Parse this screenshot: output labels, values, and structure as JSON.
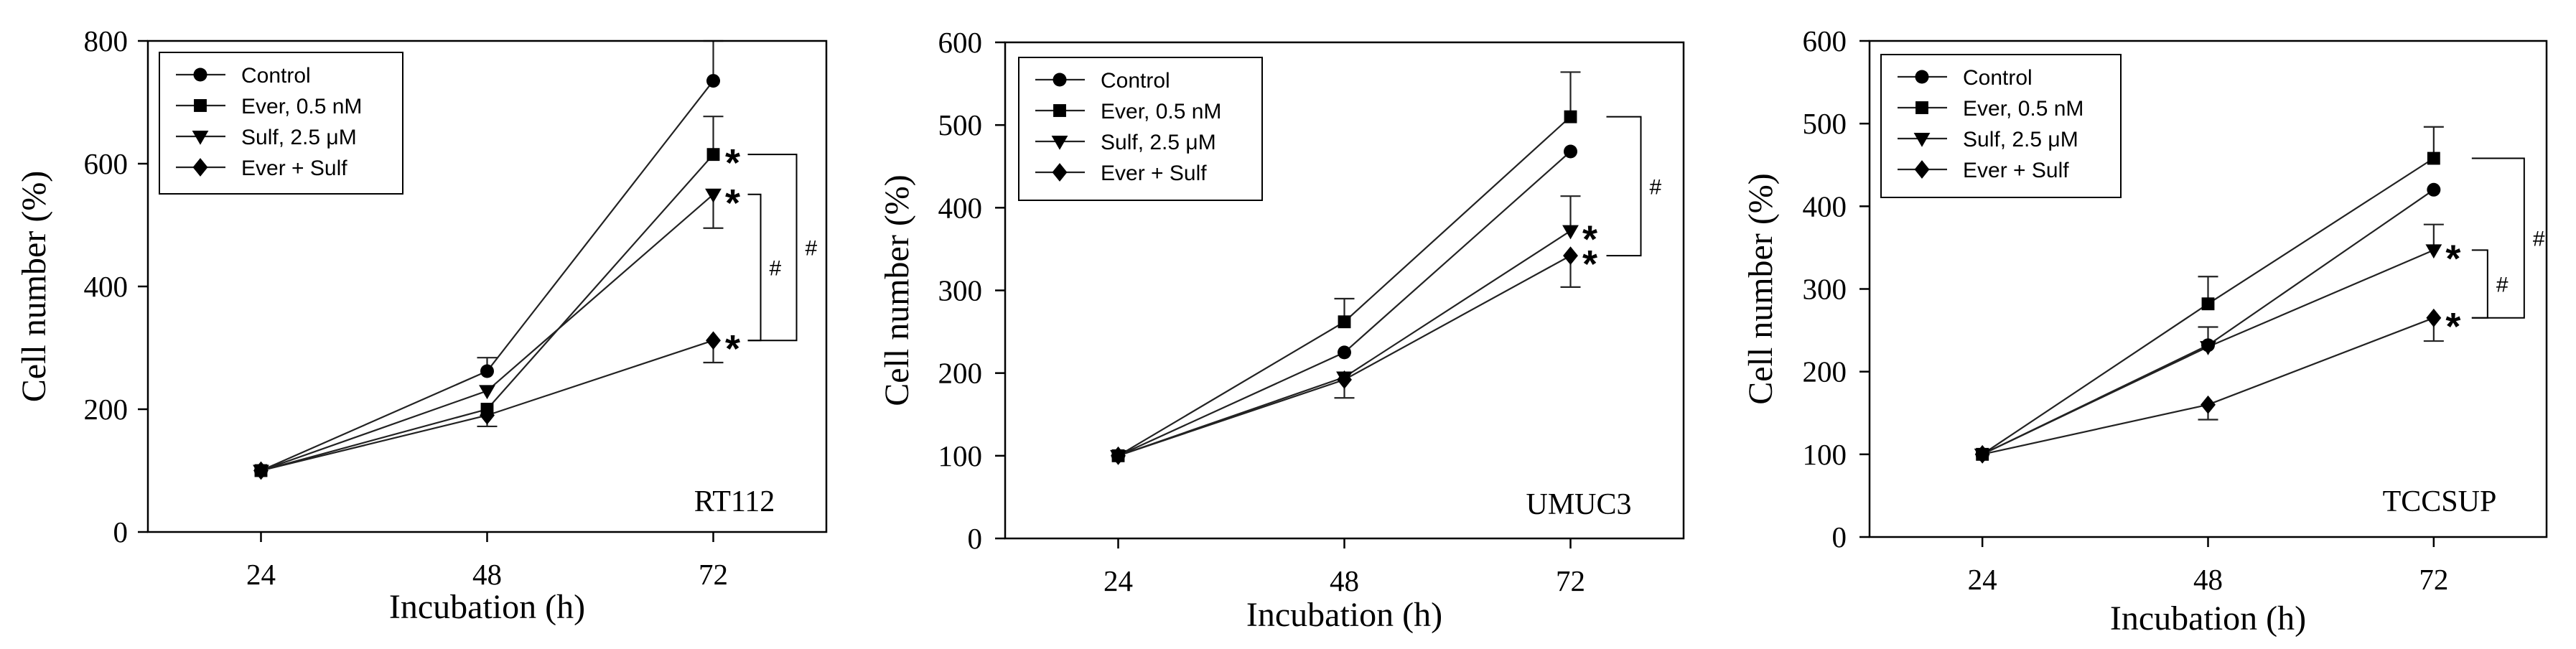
{
  "chart_data": [
    {
      "type": "line",
      "panel_label": "RT112",
      "title": "",
      "xlabel": "Incubation (h)",
      "ylabel": "Cell number (%)",
      "x": [
        24,
        48,
        72
      ],
      "xlim": [
        12,
        84
      ],
      "ylim": [
        0,
        800
      ],
      "yticks": [
        0,
        200,
        400,
        600,
        800
      ],
      "grid": false,
      "legend_position": "top-left",
      "line_color": "#222222",
      "axis_color": "#000000",
      "series": [
        {
          "name": "Control",
          "marker": "circle",
          "values": [
            100,
            262,
            735
          ],
          "error_up": [
            0,
            22,
            65
          ],
          "error_down": [
            0,
            0,
            0
          ]
        },
        {
          "name": "Ever, 0.5 nM",
          "marker": "square",
          "values": [
            100,
            200,
            615
          ],
          "error_up": [
            0,
            0,
            62
          ],
          "error_down": [
            0,
            0,
            0
          ]
        },
        {
          "name": "Sulf, 2.5 μM",
          "marker": "triangle-down",
          "values": [
            100,
            230,
            550
          ],
          "error_up": [
            0,
            0,
            0
          ],
          "error_down": [
            0,
            0,
            55
          ]
        },
        {
          "name": "Ever + Sulf",
          "marker": "diamond",
          "values": [
            100,
            190,
            312
          ],
          "error_up": [
            0,
            0,
            0
          ],
          "error_down": [
            0,
            18,
            36
          ]
        }
      ],
      "significance": [
        {
          "label": "*",
          "series_index": 1,
          "x": 72
        },
        {
          "label": "*",
          "series_index": 2,
          "x": 72
        },
        {
          "label": "*",
          "series_index": 3,
          "x": 72
        }
      ],
      "brackets": [
        {
          "label": "#",
          "from_index": 2,
          "to_index": 3,
          "x": 72
        },
        {
          "label": "#",
          "from_index": 1,
          "to_index": 3,
          "x": 72
        }
      ]
    },
    {
      "type": "line",
      "panel_label": "UMUC3",
      "title": "",
      "xlabel": "Incubation (h)",
      "ylabel": "Cell number (%)",
      "x": [
        24,
        48,
        72
      ],
      "xlim": [
        12,
        84
      ],
      "ylim": [
        0,
        600
      ],
      "yticks": [
        0,
        100,
        200,
        300,
        400,
        500,
        600
      ],
      "grid": false,
      "legend_position": "top-left",
      "line_color": "#222222",
      "axis_color": "#000000",
      "series": [
        {
          "name": "Control",
          "marker": "circle",
          "values": [
            100,
            225,
            468
          ],
          "error_up": [
            0,
            0,
            0
          ],
          "error_down": [
            0,
            0,
            0
          ]
        },
        {
          "name": "Ever, 0.5 nM",
          "marker": "square",
          "values": [
            100,
            262,
            510
          ],
          "error_up": [
            0,
            28,
            54
          ],
          "error_down": [
            0,
            0,
            0
          ]
        },
        {
          "name": "Sulf, 2.5 μM",
          "marker": "triangle-down",
          "values": [
            100,
            195,
            372
          ],
          "error_up": [
            0,
            0,
            42
          ],
          "error_down": [
            0,
            0,
            0
          ]
        },
        {
          "name": "Ever + Sulf",
          "marker": "diamond",
          "values": [
            100,
            192,
            342
          ],
          "error_up": [
            0,
            0,
            0
          ],
          "error_down": [
            0,
            22,
            38
          ]
        }
      ],
      "significance": [
        {
          "label": "*",
          "series_index": 2,
          "x": 72
        },
        {
          "label": "*",
          "series_index": 3,
          "x": 72
        }
      ],
      "brackets": [
        {
          "label": "#",
          "from_index": 1,
          "to_index": 3,
          "x": 72
        }
      ]
    },
    {
      "type": "line",
      "panel_label": "TCCSUP",
      "title": "",
      "xlabel": "Incubation (h)",
      "ylabel": "Cell number (%)",
      "x": [
        24,
        48,
        72
      ],
      "xlim": [
        12,
        84
      ],
      "ylim": [
        0,
        600
      ],
      "yticks": [
        0,
        100,
        200,
        300,
        400,
        500,
        600
      ],
      "grid": false,
      "legend_position": "top-left",
      "line_color": "#222222",
      "axis_color": "#000000",
      "series": [
        {
          "name": "Control",
          "marker": "circle",
          "values": [
            100,
            232,
            420
          ],
          "error_up": [
            0,
            0,
            0
          ],
          "error_down": [
            0,
            0,
            0
          ]
        },
        {
          "name": "Ever, 0.5 nM",
          "marker": "square",
          "values": [
            100,
            282,
            458
          ],
          "error_up": [
            0,
            33,
            38
          ],
          "error_down": [
            0,
            0,
            0
          ]
        },
        {
          "name": "Sulf, 2.5 μM",
          "marker": "triangle-down",
          "values": [
            100,
            230,
            347
          ],
          "error_up": [
            0,
            24,
            31
          ],
          "error_down": [
            0,
            0,
            0
          ]
        },
        {
          "name": "Ever + Sulf",
          "marker": "diamond",
          "values": [
            100,
            160,
            265
          ],
          "error_up": [
            0,
            0,
            0
          ],
          "error_down": [
            0,
            18,
            28
          ]
        }
      ],
      "significance": [
        {
          "label": "*",
          "series_index": 2,
          "x": 72
        },
        {
          "label": "*",
          "series_index": 3,
          "x": 72
        }
      ],
      "brackets": [
        {
          "label": "#",
          "from_index": 2,
          "to_index": 3,
          "x": 72
        },
        {
          "label": "#",
          "from_index": 1,
          "to_index": 3,
          "x": 72
        }
      ]
    }
  ]
}
